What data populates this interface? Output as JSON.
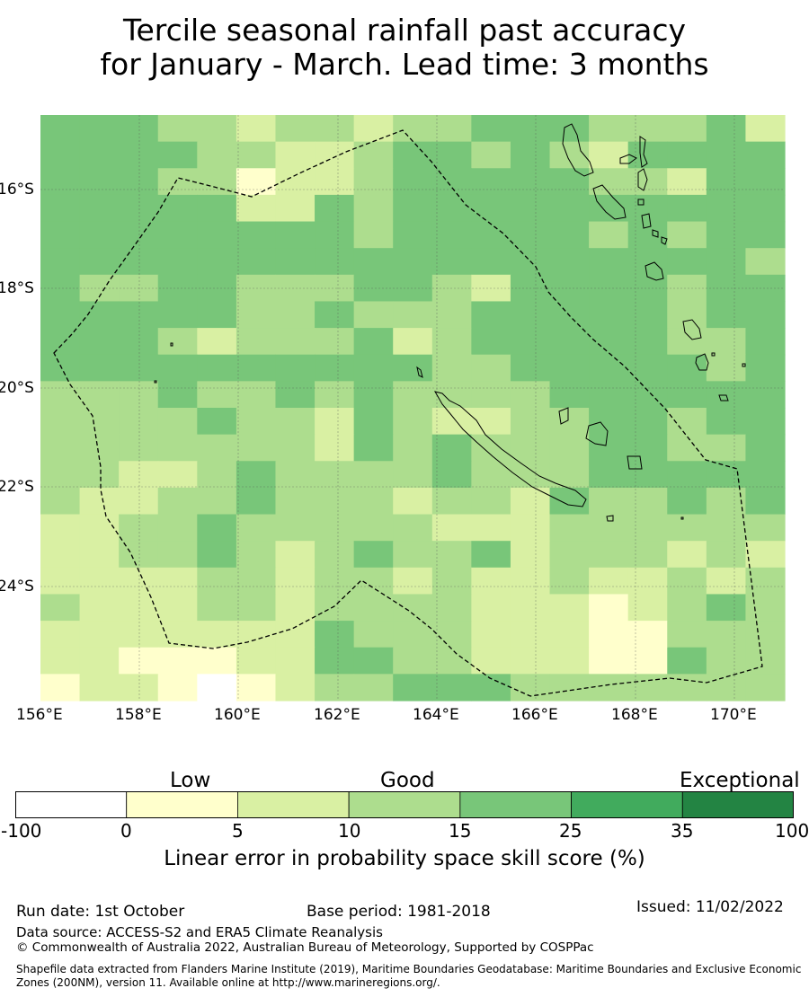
{
  "title": {
    "line1": "Tercile seasonal rainfall past accuracy",
    "line2": "for January - March. Lead time: 3 months"
  },
  "map": {
    "lon_labels": [
      "156°E",
      "158°E",
      "160°E",
      "162°E",
      "164°E",
      "166°E",
      "168°E",
      "170°E"
    ],
    "lat_labels": [
      "16°S",
      "18°S",
      "20°S",
      "22°S",
      "24°S"
    ],
    "grid": [
      [
        4,
        4,
        4,
        3,
        3,
        2,
        3,
        3,
        2,
        3,
        3,
        4,
        4,
        4,
        3,
        3,
        3,
        4,
        2
      ],
      [
        4,
        4,
        4,
        4,
        3,
        3,
        2,
        2,
        3,
        4,
        4,
        3,
        4,
        3,
        2,
        4,
        4,
        4,
        4
      ],
      [
        4,
        4,
        4,
        3,
        3,
        1,
        2,
        2,
        3,
        4,
        4,
        4,
        4,
        4,
        3,
        3,
        2,
        4,
        4
      ],
      [
        4,
        4,
        4,
        4,
        4,
        2,
        2,
        4,
        3,
        4,
        4,
        4,
        4,
        4,
        4,
        4,
        4,
        4,
        4
      ],
      [
        4,
        4,
        4,
        4,
        4,
        4,
        4,
        4,
        3,
        4,
        4,
        4,
        4,
        4,
        3,
        4,
        3,
        4,
        4
      ],
      [
        4,
        4,
        4,
        4,
        4,
        4,
        4,
        4,
        4,
        4,
        4,
        4,
        4,
        4,
        4,
        4,
        4,
        4,
        3
      ],
      [
        4,
        3,
        3,
        4,
        4,
        3,
        3,
        3,
        4,
        4,
        3,
        2,
        4,
        4,
        4,
        4,
        3,
        4,
        4
      ],
      [
        4,
        4,
        4,
        4,
        4,
        3,
        3,
        4,
        3,
        3,
        3,
        4,
        4,
        4,
        4,
        4,
        3,
        4,
        4
      ],
      [
        4,
        4,
        4,
        3,
        2,
        3,
        3,
        3,
        4,
        2,
        3,
        4,
        4,
        4,
        4,
        4,
        3,
        3,
        4
      ],
      [
        4,
        4,
        4,
        4,
        4,
        4,
        4,
        4,
        4,
        4,
        3,
        3,
        4,
        4,
        4,
        4,
        4,
        3,
        4
      ],
      [
        3,
        3,
        3,
        4,
        3,
        3,
        4,
        3,
        4,
        3,
        3,
        3,
        3,
        4,
        4,
        4,
        4,
        4,
        4
      ],
      [
        3,
        3,
        3,
        3,
        4,
        3,
        3,
        2,
        4,
        3,
        2,
        2,
        3,
        3,
        4,
        4,
        3,
        4,
        4
      ],
      [
        3,
        3,
        3,
        3,
        3,
        3,
        3,
        2,
        4,
        3,
        4,
        3,
        3,
        3,
        4,
        4,
        3,
        3,
        4
      ],
      [
        3,
        3,
        2,
        2,
        3,
        4,
        3,
        3,
        3,
        3,
        4,
        3,
        3,
        3,
        4,
        4,
        4,
        4,
        4
      ],
      [
        3,
        2,
        2,
        3,
        3,
        4,
        3,
        3,
        3,
        2,
        3,
        3,
        2,
        4,
        3,
        3,
        4,
        3,
        4
      ],
      [
        2,
        2,
        3,
        3,
        4,
        3,
        3,
        3,
        3,
        3,
        2,
        2,
        2,
        3,
        3,
        3,
        3,
        3,
        3
      ],
      [
        2,
        2,
        3,
        3,
        4,
        3,
        2,
        3,
        4,
        3,
        3,
        4,
        2,
        3,
        3,
        3,
        2,
        3,
        2
      ],
      [
        2,
        2,
        2,
        2,
        3,
        3,
        2,
        3,
        3,
        2,
        3,
        2,
        2,
        3,
        2,
        2,
        3,
        2,
        3
      ],
      [
        3,
        2,
        2,
        2,
        3,
        3,
        2,
        3,
        3,
        3,
        3,
        2,
        2,
        2,
        1,
        2,
        3,
        4,
        3
      ],
      [
        2,
        2,
        2,
        2,
        2,
        2,
        2,
        4,
        3,
        3,
        3,
        2,
        2,
        2,
        1,
        1,
        3,
        3,
        3
      ],
      [
        2,
        2,
        1,
        1,
        1,
        2,
        2,
        4,
        4,
        3,
        3,
        2,
        2,
        2,
        1,
        1,
        4,
        3,
        3
      ],
      [
        1,
        2,
        2,
        1,
        0,
        1,
        2,
        3,
        3,
        4,
        4,
        4,
        3,
        3,
        3,
        3,
        3,
        3,
        3
      ]
    ]
  },
  "colorbar": {
    "categories": [
      "Low",
      "Good",
      "Exceptional"
    ],
    "ticks": [
      "-100",
      "0",
      "5",
      "10",
      "15",
      "25",
      "35",
      "100"
    ],
    "colors": [
      "#ffffff",
      "#ffffcc",
      "#d9f0a3",
      "#addd8e",
      "#78c679",
      "#41ab5d",
      "#238443"
    ],
    "label": "Linear error in probability space skill score (%)"
  },
  "footer": {
    "run_date": "Run date: 1st October",
    "base_period": "Base period: 1981-2018",
    "issued": "Issued: 11/02/2022",
    "data_source": "Data source: ACCESS-S2 and ERA5 Climate Reanalysis",
    "copyright": "© Commonwealth of Australia 2022, Australian Bureau of Meteorology, Supported by COSPPac",
    "shapefile_line1": "Shapefile data extracted from Flanders Marine Institute (2019), Maritime Boundaries Geodatabase: Maritime Boundaries and Exclusive Economic",
    "shapefile_line2": "Zones (200NM), version 11. Available online at http://www.marineregions.org/."
  }
}
